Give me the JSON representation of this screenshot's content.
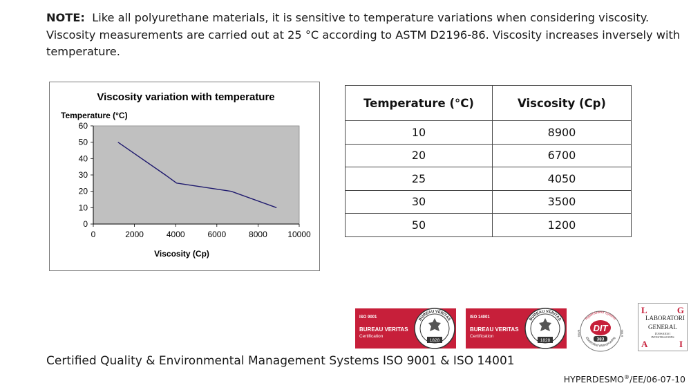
{
  "note": {
    "label": "NOTE:",
    "text": "Like all polyurethane materials, it is sensitive to temperature variations when considering viscosity. Viscosity measurements are carried out at 25 °C according to ASTM D2196-86.  Viscosity increases inversely with temperature."
  },
  "chart_data": {
    "type": "line",
    "title": "Viscosity variation with temperature",
    "xlabel": "Viscosity (Cp)",
    "ylabel": "Temperature (°C)",
    "xlim": [
      0,
      10000
    ],
    "ylim": [
      0,
      60
    ],
    "xticks": [
      0,
      2000,
      4000,
      6000,
      8000,
      10000
    ],
    "yticks": [
      0,
      10,
      20,
      30,
      40,
      50,
      60
    ],
    "plot_background": "#c0c0c0",
    "line_color": "#1f1a6e",
    "series": [
      {
        "name": "Temperature",
        "x": [
          1200,
          3500,
          4050,
          6700,
          8900
        ],
        "y": [
          50,
          30,
          25,
          20,
          10
        ]
      }
    ]
  },
  "table": {
    "headers": [
      "Temperature (°C)",
      "Viscosity (Cp)"
    ],
    "rows": [
      [
        "10",
        "8900"
      ],
      [
        "20",
        "6700"
      ],
      [
        "25",
        "4050"
      ],
      [
        "30",
        "3500"
      ],
      [
        "50",
        "1200"
      ]
    ]
  },
  "badges": {
    "iso9001": {
      "standard": "ISO 9001",
      "body": "BUREAU VERITAS",
      "sub": "Certification",
      "seal": "BUREAU VERITAS",
      "year": "1828"
    },
    "iso14001": {
      "standard": "ISO 14001",
      "body": "BUREAU VERITAS",
      "sub": "Certification",
      "seal": "BUREAU VERITAS",
      "year": "1828"
    },
    "dit": {
      "top": "Hyperdesmo System",
      "mark": "DIT",
      "number": "383",
      "bottom": "Elasticidad Waterproofing",
      "left": "665/R",
      "right": "665-R"
    },
    "lgai": {
      "l": "L",
      "g": "G",
      "a": "A",
      "i": "I",
      "line1": "LABORATORI",
      "line2": "GENERAL",
      "line3": "D'ASSAIGS I INVESTIGACIONS"
    }
  },
  "brand_color": "#c71f3a",
  "footer": {
    "certification": "Certified Quality & Environmental Management Systems ISO 9001 & ISO 14001",
    "ref_brand": "HYPERDESMO",
    "ref_mark": "®",
    "ref_code": "/EE/06-07-10"
  }
}
